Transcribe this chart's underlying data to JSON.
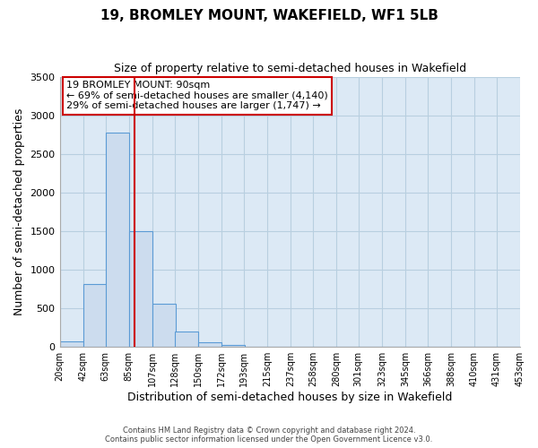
{
  "title": "19, BROMLEY MOUNT, WAKEFIELD, WF1 5LB",
  "subtitle": "Size of property relative to semi-detached houses in Wakefield",
  "xlabel": "Distribution of semi-detached houses by size in Wakefield",
  "ylabel": "Number of semi-detached properties",
  "bar_left_edges": [
    20,
    42,
    63,
    85,
    107,
    128,
    150,
    172,
    193,
    215,
    237,
    258,
    280,
    301,
    323,
    345,
    366,
    388,
    410,
    431
  ],
  "bar_heights": [
    75,
    820,
    2780,
    1500,
    555,
    195,
    60,
    25,
    0,
    0,
    0,
    0,
    0,
    0,
    0,
    0,
    0,
    0,
    0,
    0
  ],
  "bin_width": 22,
  "bar_color": "#ccdcee",
  "bar_edge_color": "#5b9bd5",
  "property_size": 90,
  "vline_color": "#cc0000",
  "annotation_title": "19 BROMLEY MOUNT: 90sqm",
  "annotation_line1": "← 69% of semi-detached houses are smaller (4,140)",
  "annotation_line2": "29% of semi-detached houses are larger (1,747) →",
  "annotation_box_edge": "#cc0000",
  "ylim": [
    0,
    3500
  ],
  "yticks": [
    0,
    500,
    1000,
    1500,
    2000,
    2500,
    3000,
    3500
  ],
  "tick_labels": [
    "20sqm",
    "42sqm",
    "63sqm",
    "85sqm",
    "107sqm",
    "128sqm",
    "150sqm",
    "172sqm",
    "193sqm",
    "215sqm",
    "237sqm",
    "258sqm",
    "280sqm",
    "301sqm",
    "323sqm",
    "345sqm",
    "366sqm",
    "388sqm",
    "410sqm",
    "431sqm",
    "453sqm"
  ],
  "footer_line1": "Contains HM Land Registry data © Crown copyright and database right 2024.",
  "footer_line2": "Contains public sector information licensed under the Open Government Licence v3.0.",
  "background_color": "#ffffff",
  "plot_bg_color": "#dce9f5",
  "grid_color": "#b8cfe0"
}
